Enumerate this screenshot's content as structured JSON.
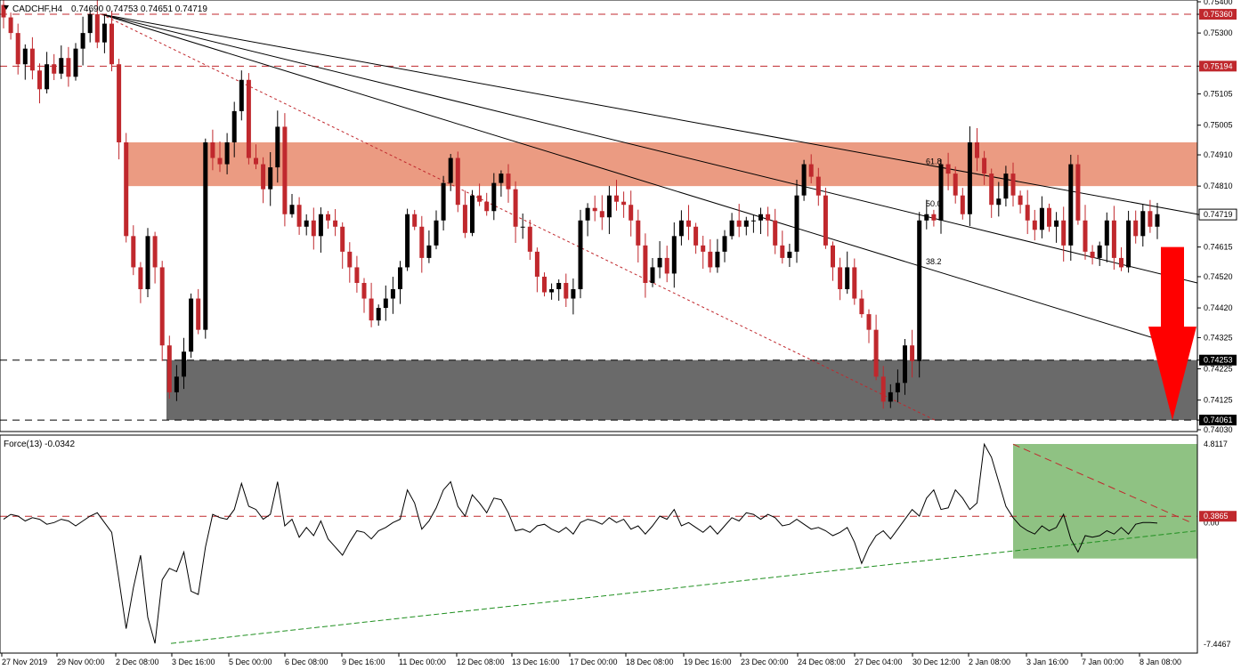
{
  "header": {
    "symbol": "CADCHF,H4",
    "ohlc": "0.74690 0.74753 0.74651 0.74719",
    "indicator": "Force(13) -0.0342"
  },
  "colors": {
    "bull": "#000000",
    "bear": "#c0282d",
    "resistance_zone": "#eb9b82",
    "support_zone": "#6a6a6a",
    "force_zone": "#8fc283",
    "arrow": "#ff0000",
    "level_line": "#c0282d",
    "force_trend": "#1f8f1f"
  },
  "chart_data": [
    {
      "type": "candlestick",
      "price_axis": {
        "range": [
          0.7403,
          0.754
        ],
        "ticks": [
          "0.75400",
          "0.75360",
          "0.75300",
          "0.75194",
          "0.75105",
          "0.75005",
          "0.74910",
          "0.74810",
          "0.74719",
          "0.74615",
          "0.74520",
          "0.74420",
          "0.74325",
          "0.74253",
          "0.74225",
          "0.74125",
          "0.74061",
          "0.74030"
        ]
      },
      "x_labels": [
        "27 Nov 2019",
        "29 Nov 00:00",
        "2 Dec 08:00",
        "3 Dec 16:00",
        "5 Dec 00:00",
        "6 Dec 08:00",
        "9 Dec 16:00",
        "11 Dec 00:00",
        "12 Dec 08:00",
        "13 Dec 16:00",
        "17 Dec 00:00",
        "18 Dec 08:00",
        "19 Dec 16:00",
        "23 Dec 00:00",
        "24 Dec 08:00",
        "27 Dec 04:00",
        "30 Dec 12:00",
        "2 Jan 08:00",
        "3 Jan 16:00",
        "7 Jan 00:00",
        "8 Jan 08:00"
      ],
      "marked_levels": [
        {
          "value": 0.7536,
          "label": "0.75360"
        },
        {
          "value": 0.75194,
          "label": "0.75194"
        },
        {
          "value": 0.74253,
          "label": "0.74253"
        },
        {
          "value": 0.74061,
          "label": "0.74061"
        }
      ],
      "current_price": {
        "value": 0.74719,
        "label": "0.74719"
      },
      "resistance_zone": [
        0.7481,
        0.7495
      ],
      "support_zone": [
        0.74061,
        0.74253
      ],
      "fib_labels": [
        "61.8",
        "50.0",
        "38.2"
      ],
      "closes": [
        0.7535,
        0.753,
        0.752,
        0.7525,
        0.7518,
        0.7512,
        0.752,
        0.7517,
        0.7522,
        0.7516,
        0.7525,
        0.753,
        0.7536,
        0.7527,
        0.7533,
        0.752,
        0.7495,
        0.7465,
        0.7455,
        0.7448,
        0.7465,
        0.7455,
        0.743,
        0.7415,
        0.742,
        0.7428,
        0.7445,
        0.7435,
        0.7495,
        0.749,
        0.7488,
        0.7495,
        0.7505,
        0.7515,
        0.749,
        0.7488,
        0.748,
        0.7487,
        0.75,
        0.7472,
        0.7475,
        0.7468,
        0.747,
        0.7465,
        0.7472,
        0.747,
        0.7468,
        0.746,
        0.7455,
        0.745,
        0.7445,
        0.7438,
        0.7442,
        0.7445,
        0.7448,
        0.7455,
        0.7472,
        0.7468,
        0.7458,
        0.7462,
        0.747,
        0.7482,
        0.749,
        0.7475,
        0.7466,
        0.7478,
        0.7476,
        0.7473,
        0.7482,
        0.7485,
        0.748,
        0.7468,
        0.7468,
        0.746,
        0.7452,
        0.7447,
        0.7448,
        0.745,
        0.7445,
        0.7448,
        0.747,
        0.7474,
        0.7473,
        0.7471,
        0.7478,
        0.7476,
        0.7475,
        0.747,
        0.7462,
        0.745,
        0.7455,
        0.7458,
        0.7453,
        0.7465,
        0.747,
        0.7468,
        0.7462,
        0.746,
        0.7455,
        0.746,
        0.7465,
        0.747,
        0.7468,
        0.747,
        0.747,
        0.7472,
        0.747,
        0.7462,
        0.7458,
        0.746,
        0.7478,
        0.7488,
        0.7484,
        0.7478,
        0.7462,
        0.7455,
        0.7448,
        0.7455,
        0.7445,
        0.744,
        0.7435,
        0.742,
        0.7412,
        0.7415,
        0.7418,
        0.743,
        0.7425,
        0.747,
        0.7472,
        0.747,
        0.7488,
        0.7485,
        0.7478,
        0.7472,
        0.7495,
        0.749,
        0.7485,
        0.7475,
        0.7477,
        0.7485,
        0.7478,
        0.7475,
        0.747,
        0.7467,
        0.7474,
        0.7468,
        0.747,
        0.7462,
        0.7488,
        0.747,
        0.746,
        0.7458,
        0.7462,
        0.747,
        0.7458,
        0.7455,
        0.747,
        0.7465,
        0.7473,
        0.7468,
        0.7472
      ]
    },
    {
      "type": "line",
      "name": "Force(13)",
      "value_label": "-0.0342",
      "y_axis": {
        "range": [
          -7.4467,
          4.8117
        ],
        "ticks": [
          "4.8117",
          "0.00",
          "-7.4467"
        ]
      },
      "marked_level": {
        "value": 0.3865,
        "label": "0.3865"
      },
      "values": [
        0.2,
        0.5,
        0.4,
        0.1,
        0.3,
        0.2,
        -0.1,
        0.0,
        0.2,
        0.1,
        -0.2,
        0.1,
        0.4,
        0.6,
        0.0,
        -0.6,
        -3.5,
        -6.5,
        -4.0,
        -2.0,
        -5.8,
        -7.4,
        -3.5,
        -2.8,
        -3.0,
        -1.8,
        -4.2,
        -4.4,
        -1.5,
        0.5,
        0.3,
        0.2,
        0.8,
        2.4,
        1.0,
        0.8,
        0.2,
        0.5,
        2.5,
        -0.2,
        0.2,
        -0.9,
        -0.3,
        -0.8,
        0.1,
        -1.0,
        -1.5,
        -2.0,
        -1.2,
        -0.5,
        -0.6,
        -1.0,
        -0.5,
        -0.3,
        0.0,
        0.2,
        2.0,
        1.2,
        -0.4,
        0.1,
        0.9,
        2.0,
        2.5,
        1.0,
        0.4,
        1.7,
        1.2,
        0.6,
        1.5,
        1.4,
        0.6,
        -0.5,
        -0.4,
        -0.6,
        -0.2,
        -0.1,
        -0.4,
        -0.6,
        -0.3,
        -0.7,
        0.0,
        0.2,
        0.1,
        -0.1,
        0.3,
        0.0,
        0.2,
        -0.4,
        -0.2,
        -0.7,
        -0.2,
        0.4,
        0.2,
        0.8,
        -0.2,
        0.0,
        -0.3,
        -0.6,
        -0.2,
        -0.7,
        -0.2,
        0.3,
        0.1,
        0.6,
        0.5,
        0.2,
        0.5,
        0.3,
        -0.2,
        -0.1,
        0.2,
        -0.1,
        -0.4,
        -0.3,
        -0.5,
        -0.8,
        -0.6,
        -0.3,
        -1.2,
        -2.5,
        -1.5,
        -0.8,
        -0.5,
        -1.0,
        -0.4,
        0.2,
        0.8,
        0.4,
        1.5,
        2.0,
        0.8,
        0.9,
        2.0,
        1.5,
        0.8,
        1.2,
        4.8,
        4.0,
        2.5,
        1.0,
        0.3,
        -0.2,
        -0.5,
        -0.7,
        -0.2,
        -0.5,
        -0.3,
        0.5,
        -1.0,
        -1.8,
        -0.8,
        -0.9,
        -0.8,
        -0.5,
        -0.7,
        -0.3,
        -0.7,
        -0.1,
        0.0,
        0.0,
        -0.03
      ]
    }
  ]
}
